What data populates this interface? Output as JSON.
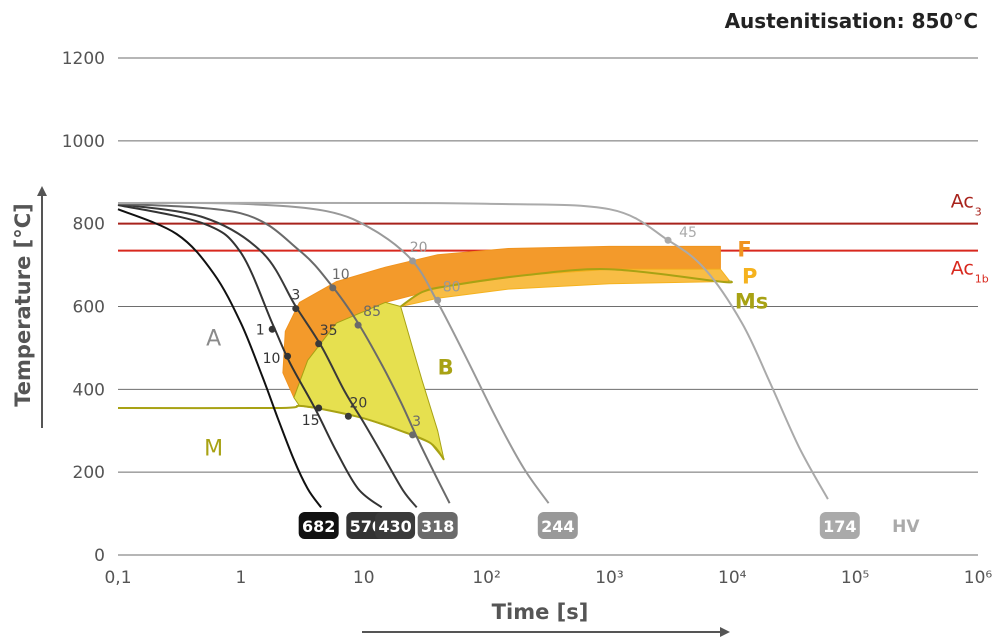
{
  "chart_data": {
    "type": "line",
    "title": "Austenitisation: 850°C",
    "xlabel": "Time [s]",
    "ylabel": "Temperature [°C]",
    "x_scale": "log",
    "xlim": [
      0.1,
      1000000
    ],
    "ylim": [
      0,
      1200
    ],
    "x_ticks": [
      {
        "value": 0.1,
        "label": "0,1"
      },
      {
        "value": 1,
        "label": "1"
      },
      {
        "value": 10,
        "label": "10"
      },
      {
        "value": 100,
        "label": "10²"
      },
      {
        "value": 1000,
        "label": "10³"
      },
      {
        "value": 10000,
        "label": "10⁴"
      },
      {
        "value": 100000,
        "label": "10⁵"
      },
      {
        "value": 1000000,
        "label": "10⁶"
      }
    ],
    "y_ticks": [
      {
        "value": 0,
        "label": "0"
      },
      {
        "value": 200,
        "label": "200"
      },
      {
        "value": 400,
        "label": "400"
      },
      {
        "value": 600,
        "label": "600"
      },
      {
        "value": 800,
        "label": "800"
      },
      {
        "value": 1000,
        "label": "1000"
      },
      {
        "value": 1200,
        "label": "1200"
      }
    ],
    "grid": true,
    "reference_lines": [
      {
        "name": "Ac3",
        "label_main": "Ac",
        "label_sub": "3",
        "y": 800,
        "color": "#a8231c",
        "label_x": 600000
      },
      {
        "name": "Ac1b",
        "label_main": "Ac",
        "label_sub": "1b",
        "y": 735,
        "color": "#d8281e",
        "label_x": 600000
      }
    ],
    "regions": [
      {
        "name": "F",
        "label": "F",
        "color": "#f0931e",
        "fill": "#f39a2b",
        "label_at": [
          11000,
          735
        ],
        "points": [
          [
            2.2,
            440
          ],
          [
            2.3,
            540
          ],
          [
            3,
            610
          ],
          [
            6,
            660
          ],
          [
            15,
            695
          ],
          [
            40,
            725
          ],
          [
            150,
            740
          ],
          [
            1000,
            745
          ],
          [
            8000,
            745
          ],
          [
            8000,
            690
          ],
          [
            1000,
            690
          ],
          [
            200,
            675
          ],
          [
            50,
            650
          ],
          [
            15,
            610
          ],
          [
            6,
            560
          ],
          [
            3.5,
            470
          ],
          [
            2.7,
            380
          ]
        ]
      },
      {
        "name": "P",
        "label": "P",
        "color": "#f5b21e",
        "fill": "#f8bd45",
        "label_at": [
          12000,
          670
        ],
        "points": [
          [
            8000,
            690
          ],
          [
            1000,
            690
          ],
          [
            200,
            675
          ],
          [
            50,
            650
          ],
          [
            30,
            635
          ],
          [
            20,
            600
          ],
          [
            40,
            620
          ],
          [
            150,
            642
          ],
          [
            1000,
            655
          ],
          [
            8000,
            660
          ],
          [
            9500,
            662
          ]
        ]
      },
      {
        "name": "B",
        "label": "B",
        "color": "#a8a214",
        "fill": "#e6e04f",
        "label_at": [
          40,
          450
        ],
        "points": [
          [
            2.7,
            380
          ],
          [
            3.5,
            470
          ],
          [
            6,
            560
          ],
          [
            15,
            610
          ],
          [
            20,
            600
          ],
          [
            25,
            500
          ],
          [
            30,
            420
          ],
          [
            40,
            300
          ],
          [
            45,
            230
          ],
          [
            35,
            270
          ],
          [
            20,
            300
          ],
          [
            10,
            330
          ],
          [
            5,
            350
          ],
          [
            3,
            360
          ]
        ]
      }
    ],
    "ms_line": {
      "name": "Ms",
      "label": "Ms",
      "color": "#a8a214",
      "label_at": [
        10500,
        610
      ],
      "points": [
        [
          0.1,
          355
        ],
        [
          2,
          355
        ],
        [
          3,
          360
        ],
        [
          5,
          350
        ],
        [
          10,
          330
        ],
        [
          20,
          300
        ],
        [
          35,
          270
        ],
        [
          45,
          230
        ]
      ],
      "upper": [
        [
          20,
          600
        ],
        [
          30,
          635
        ],
        [
          50,
          650
        ],
        [
          200,
          675
        ],
        [
          1000,
          690
        ],
        [
          8000,
          660
        ],
        [
          9500,
          662
        ]
      ]
    },
    "region_labels": [
      {
        "label": "A",
        "x": 0.6,
        "y": 525,
        "color": "#8a8a8a"
      },
      {
        "label": "M",
        "x": 0.6,
        "y": 260,
        "color": "#a8a214"
      }
    ],
    "series": [
      {
        "hv": "682",
        "color": "#111111",
        "label_x": 4.3,
        "points": [
          [
            0.1,
            835
          ],
          [
            0.3,
            775
          ],
          [
            0.6,
            680
          ],
          [
            1,
            560
          ],
          [
            1.5,
            430
          ],
          [
            2,
            330
          ],
          [
            2.7,
            230
          ],
          [
            3.5,
            160
          ],
          [
            4.5,
            115
          ]
        ],
        "marks": []
      },
      {
        "hv": "570",
        "color": "#333333",
        "label_x": 10.5,
        "points": [
          [
            0.1,
            845
          ],
          [
            0.5,
            800
          ],
          [
            1,
            730
          ],
          [
            1.8,
            560
          ],
          [
            2.5,
            465
          ],
          [
            4,
            355
          ],
          [
            6,
            250
          ],
          [
            9,
            160
          ],
          [
            14,
            115
          ]
        ],
        "marks": [
          {
            "x": 1.8,
            "y": 545,
            "label": "1",
            "dx": -12,
            "dy": 0
          },
          {
            "x": 2.4,
            "y": 480,
            "label": "10",
            "dx": -16,
            "dy": 2
          },
          {
            "x": 4.3,
            "y": 355,
            "label": "15",
            "dx": -8,
            "dy": 12
          }
        ]
      },
      {
        "hv": "430",
        "color": "#3a3a3a",
        "label_x": 18,
        "points": [
          [
            0.1,
            847
          ],
          [
            0.5,
            815
          ],
          [
            1.5,
            730
          ],
          [
            2.8,
            600
          ],
          [
            4.5,
            505
          ],
          [
            7,
            395
          ],
          [
            10,
            320
          ],
          [
            15,
            230
          ],
          [
            21,
            155
          ],
          [
            27,
            115
          ]
        ],
        "marks": [
          {
            "x": 2.8,
            "y": 595,
            "label": "3",
            "dx": 0,
            "dy": -14
          },
          {
            "x": 4.3,
            "y": 510,
            "label": "35",
            "dx": 10,
            "dy": -14
          },
          {
            "x": 7.5,
            "y": 335,
            "label": "20",
            "dx": 10,
            "dy": -14
          }
        ]
      },
      {
        "hv": "318",
        "color": "#6a6a6a",
        "label_x": 40,
        "points": [
          [
            0.1,
            848
          ],
          [
            1,
            825
          ],
          [
            3,
            735
          ],
          [
            5.5,
            650
          ],
          [
            9,
            560
          ],
          [
            14,
            460
          ],
          [
            20,
            370
          ],
          [
            28,
            275
          ],
          [
            38,
            195
          ],
          [
            50,
            125
          ]
        ],
        "marks": [
          {
            "x": 5.6,
            "y": 645,
            "label": "10",
            "dx": 8,
            "dy": -14
          },
          {
            "x": 9,
            "y": 555,
            "label": "85",
            "dx": 14,
            "dy": -14
          },
          {
            "x": 25,
            "y": 290,
            "label": "3",
            "dx": 4,
            "dy": -14
          }
        ]
      },
      {
        "hv": "244",
        "color": "#999999",
        "label_x": 380,
        "points": [
          [
            0.1,
            850
          ],
          [
            1,
            848
          ],
          [
            5,
            830
          ],
          [
            12,
            785
          ],
          [
            25,
            710
          ],
          [
            40,
            610
          ],
          [
            70,
            470
          ],
          [
            120,
            330
          ],
          [
            200,
            210
          ],
          [
            320,
            125
          ]
        ],
        "marks": [
          {
            "x": 25,
            "y": 710,
            "label": "20",
            "dx": 6,
            "dy": -14
          },
          {
            "x": 40,
            "y": 615,
            "label": "80",
            "dx": 14,
            "dy": -14
          }
        ]
      },
      {
        "hv": "174",
        "color": "#aaaaaa",
        "label_x": 75000,
        "points": [
          [
            0.1,
            850
          ],
          [
            10,
            850
          ],
          [
            100,
            848
          ],
          [
            1000,
            835
          ],
          [
            3000,
            760
          ],
          [
            6000,
            690
          ],
          [
            12000,
            560
          ],
          [
            20000,
            420
          ],
          [
            35000,
            260
          ],
          [
            60000,
            135
          ]
        ],
        "marks": [
          {
            "x": 3000,
            "y": 760,
            "label": "45",
            "dx": 20,
            "dy": -8
          }
        ]
      }
    ],
    "hv_label": {
      "text": "HV",
      "x": 200000
    },
    "hv_badge_y": 70
  }
}
